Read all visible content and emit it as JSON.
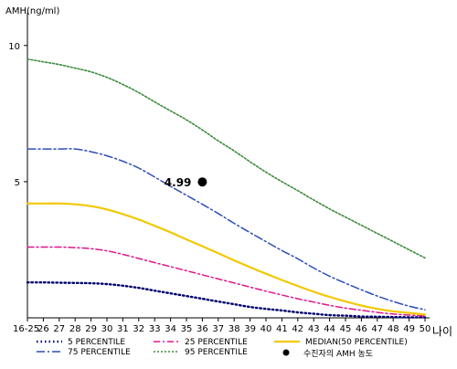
{
  "chart_data": {
    "type": "line",
    "title": "",
    "ylabel": "AMH(ng/ml)",
    "xlabel": "나이",
    "ylim": [
      0,
      11
    ],
    "yticks": [
      5,
      10
    ],
    "grid": false,
    "legend_position": "bottom",
    "categories": [
      "16-25",
      "26",
      "27",
      "28",
      "29",
      "30",
      "31",
      "32",
      "33",
      "34",
      "35",
      "36",
      "37",
      "38",
      "39",
      "40",
      "41",
      "42",
      "43",
      "44",
      "45",
      "46",
      "47",
      "48",
      "49",
      "50"
    ],
    "series": [
      {
        "name": "5 PERCENTILE",
        "color": "#00006e",
        "dash": "1.5 3",
        "width": 2.4,
        "values": [
          1.3,
          1.3,
          1.29,
          1.28,
          1.27,
          1.24,
          1.18,
          1.1,
          1.0,
          0.9,
          0.8,
          0.7,
          0.6,
          0.5,
          0.4,
          0.33,
          0.27,
          0.2,
          0.15,
          0.1,
          0.08,
          0.05,
          0.04,
          0.03,
          0.02,
          0.02
        ]
      },
      {
        "name": "25 PERCENTILE",
        "color": "#e0158a",
        "dash": "7 3 2 3",
        "width": 1.5,
        "values": [
          2.6,
          2.6,
          2.6,
          2.58,
          2.54,
          2.46,
          2.33,
          2.18,
          2.03,
          1.88,
          1.73,
          1.58,
          1.43,
          1.28,
          1.13,
          0.98,
          0.84,
          0.7,
          0.58,
          0.46,
          0.36,
          0.28,
          0.2,
          0.14,
          0.1,
          0.07
        ]
      },
      {
        "name": "MEDIAN(50 PERCENTILE)",
        "color": "#f2c800",
        "dash": "",
        "width": 2.2,
        "values": [
          4.2,
          4.2,
          4.2,
          4.17,
          4.1,
          3.98,
          3.81,
          3.61,
          3.38,
          3.14,
          2.88,
          2.63,
          2.37,
          2.11,
          1.86,
          1.62,
          1.39,
          1.17,
          0.96,
          0.77,
          0.6,
          0.45,
          0.33,
          0.24,
          0.18,
          0.12
        ]
      },
      {
        "name": "75 PERCENTILE",
        "color": "#2f4fb5",
        "dash": "9 3 2 3",
        "width": 1.5,
        "values": [
          6.2,
          6.2,
          6.2,
          6.2,
          6.1,
          5.95,
          5.75,
          5.5,
          5.17,
          4.83,
          4.5,
          4.17,
          3.83,
          3.47,
          3.13,
          2.8,
          2.47,
          2.17,
          1.83,
          1.53,
          1.27,
          1.03,
          0.8,
          0.6,
          0.43,
          0.3
        ]
      },
      {
        "name": "95 PERCENTILE",
        "color": "#3c8b3c",
        "dash": "2 2",
        "width": 1.6,
        "values": [
          9.5,
          9.4,
          9.3,
          9.17,
          9.03,
          8.83,
          8.57,
          8.27,
          7.93,
          7.6,
          7.27,
          6.9,
          6.5,
          6.13,
          5.73,
          5.35,
          5.0,
          4.67,
          4.33,
          4.0,
          3.7,
          3.4,
          3.1,
          2.8,
          2.5,
          2.2
        ]
      }
    ],
    "patient_point": {
      "label": "수진자의 AMH 농도",
      "x": "36",
      "y": 4.99,
      "value_label": "4.99",
      "color": "#000000"
    }
  }
}
